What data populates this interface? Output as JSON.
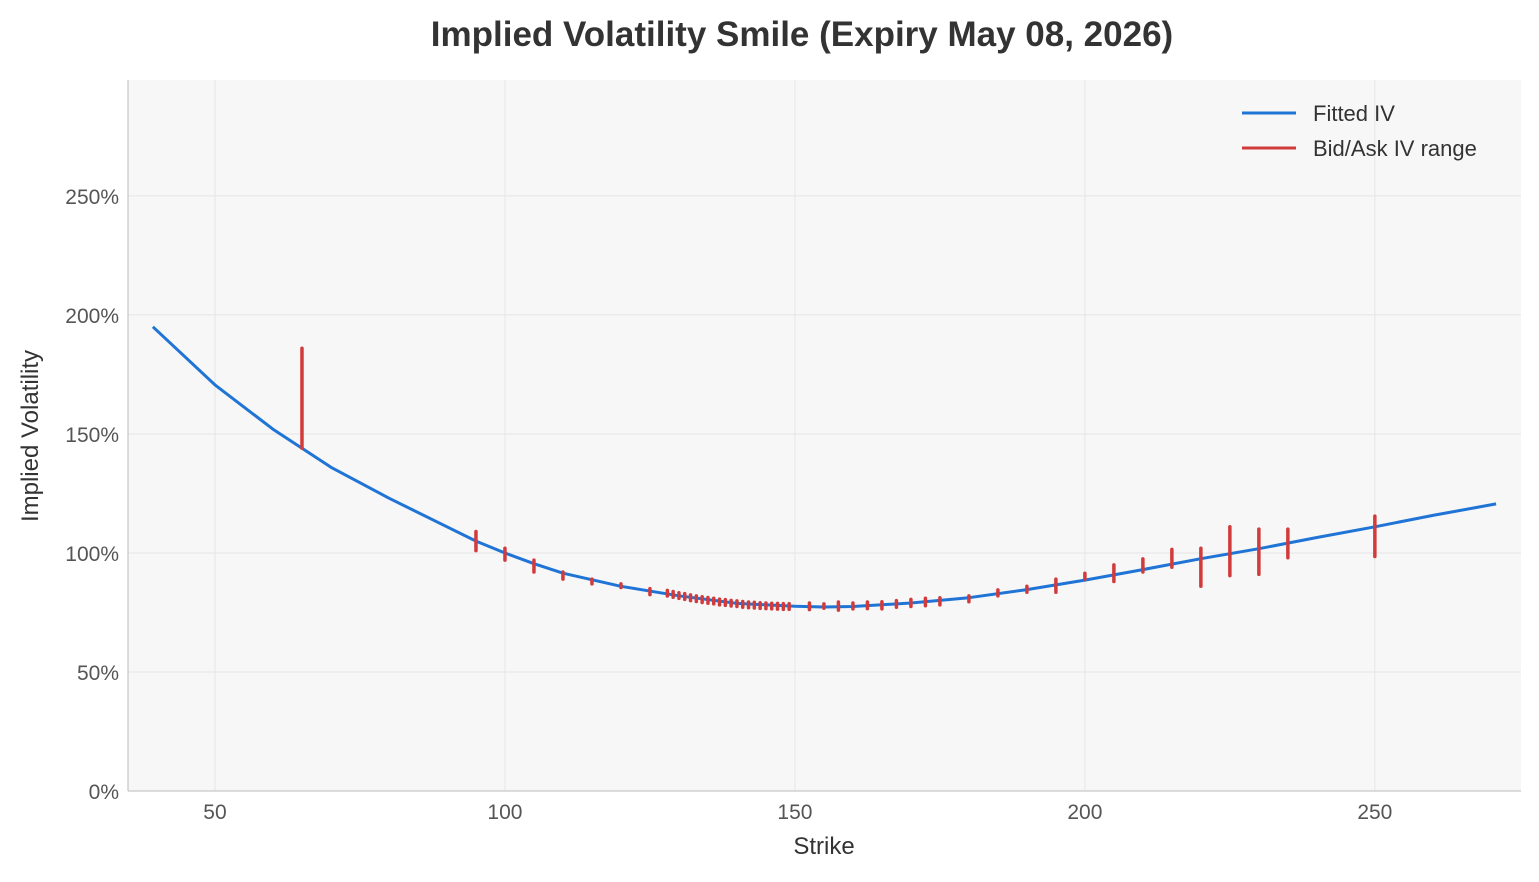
{
  "chart_data": {
    "type": "line",
    "title": "Implied Volatility Smile (Expiry May 08, 2026)",
    "xlabel": "Strike",
    "ylabel": "Implied Volatility",
    "xlim": [
      35,
      275.2
    ],
    "ylim": [
      0,
      298.7
    ],
    "xticks": [
      50,
      100,
      150,
      200,
      250
    ],
    "yticks": [
      0,
      50,
      100,
      150,
      200,
      250
    ],
    "ytick_format": "percent",
    "grid": true,
    "legend_position": "top-right",
    "colors": {
      "fitted": "#1f74d6",
      "bidask": "#d13b3b",
      "plot_bg": "#f7f7f7",
      "grid": "#e6e6e6"
    },
    "series": [
      {
        "name": "Fitted IV",
        "type": "line",
        "x": [
          39.3,
          50,
          60,
          70,
          80,
          90,
          95,
          100,
          105,
          110,
          120,
          130,
          140,
          150,
          155,
          160,
          170,
          180,
          190,
          200,
          210,
          220,
          230,
          240,
          250,
          260,
          270.9
        ],
        "y": [
          195,
          170.6,
          152,
          136,
          123,
          111,
          105,
          100,
          95.5,
          91.5,
          86,
          82,
          78.8,
          77.6,
          77.3,
          77.5,
          79,
          81.2,
          84.6,
          88.6,
          93,
          97.6,
          101.8,
          106.5,
          111,
          115.8,
          120.6
        ]
      },
      {
        "name": "Bid/Ask IV range",
        "type": "errorbar",
        "strikes": [
          65,
          95,
          100,
          105,
          110,
          115,
          120,
          125,
          128,
          129,
          130,
          131,
          132,
          133,
          134,
          135,
          136,
          137,
          138,
          139,
          140,
          141,
          142,
          143,
          144,
          145,
          146,
          147,
          148,
          149,
          152.5,
          155,
          157.5,
          160,
          162.5,
          165,
          167.5,
          170,
          172.5,
          175,
          180,
          185,
          190,
          195,
          200,
          205,
          210,
          215,
          220,
          225,
          230,
          235,
          250
        ],
        "low": [
          144,
          101,
          97,
          92,
          89,
          87,
          85.5,
          82.5,
          81.9,
          81.4,
          80.9,
          80.5,
          80.0,
          79.6,
          79.2,
          78.9,
          78.6,
          78.2,
          78.0,
          77.7,
          77.5,
          77.2,
          77.0,
          76.9,
          76.7,
          76.6,
          76.5,
          76.4,
          76.3,
          76.3,
          76.2,
          76.8,
          76.0,
          76.5,
          76.6,
          76.5,
          77.2,
          77.5,
          77.8,
          78.2,
          79.5,
          82,
          83.5,
          83.5,
          89,
          88,
          92,
          94,
          86,
          90.5,
          91,
          98,
          98.5
        ],
        "high": [
          186,
          109,
          102,
          97,
          92,
          89,
          87,
          85,
          84.3,
          83.8,
          83.3,
          82.9,
          82.4,
          82.0,
          81.6,
          81.3,
          81.0,
          80.6,
          80.4,
          80.1,
          79.9,
          79.6,
          79.4,
          79.3,
          79.1,
          79.0,
          78.9,
          78.8,
          78.7,
          78.7,
          79.0,
          78.6,
          79.4,
          79.0,
          79.4,
          79.5,
          80.0,
          80.5,
          81.0,
          81.2,
          82,
          84.5,
          86,
          89,
          91.5,
          95,
          97.5,
          101.5,
          102,
          111,
          110,
          110,
          115.5
        ]
      }
    ]
  }
}
